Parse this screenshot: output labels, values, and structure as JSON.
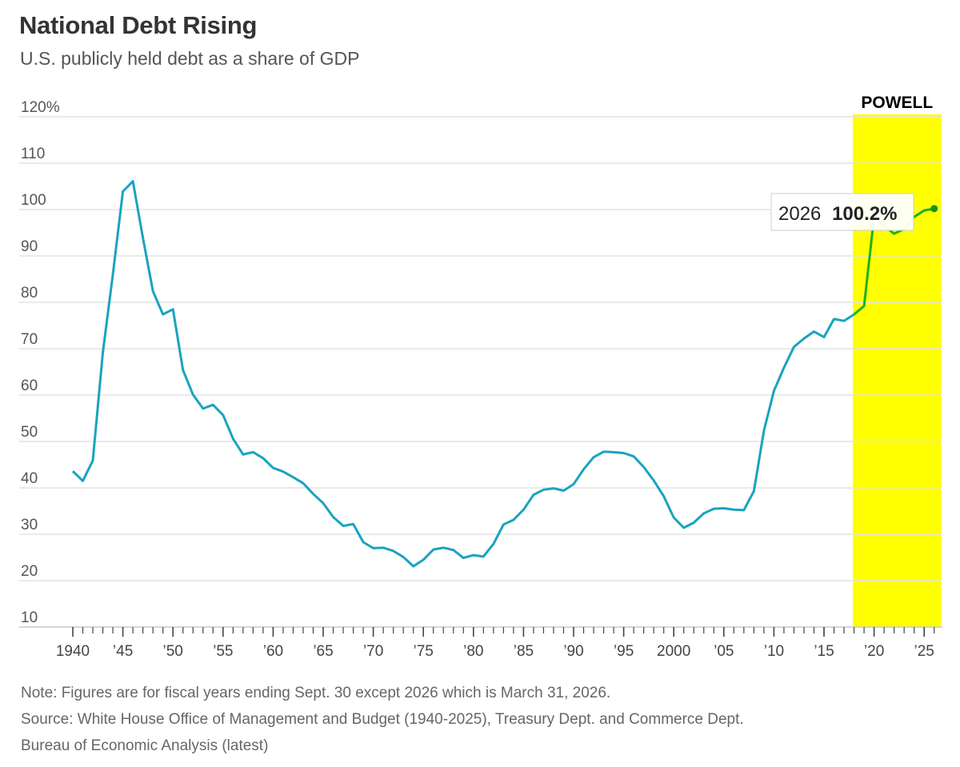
{
  "header": {
    "title": "National Debt Rising",
    "subtitle": "U.S. publicly held debt as a share of GDP"
  },
  "highlight": {
    "label": "POWELL",
    "from_year": 2018,
    "to_year": 2026.7,
    "color": "#ffff00"
  },
  "callout": {
    "year_text": "2026",
    "value_text": "100.2%"
  },
  "notes": {
    "note": "Note: Figures are for fiscal years ending Sept. 30 except 2026 which is March 31, 2026.",
    "source_line1": "Source: White House Office of Management and Budget (1940-2025), Treasury Dept. and Commerce Dept.",
    "source_line2": "Bureau of Economic Analysis (latest)"
  },
  "colors": {
    "line": "#1aa3bf",
    "line_highlight": "#1db21d",
    "grid": "#e3e3e3",
    "text": "#333333"
  },
  "chart_data": {
    "type": "line",
    "title": "National Debt Rising",
    "subtitle": "U.S. publicly held debt as a share of GDP",
    "xlabel": "",
    "ylabel": "",
    "xlim": [
      1939.9,
      2026.5
    ],
    "ylim": [
      10,
      120
    ],
    "yticks": [
      {
        "value": 120,
        "label": "120%"
      },
      {
        "value": 110,
        "label": "110"
      },
      {
        "value": 100,
        "label": "100"
      },
      {
        "value": 90,
        "label": "90"
      },
      {
        "value": 80,
        "label": "80"
      },
      {
        "value": 70,
        "label": "70"
      },
      {
        "value": 60,
        "label": "60"
      },
      {
        "value": 50,
        "label": "50"
      },
      {
        "value": 40,
        "label": "40"
      },
      {
        "value": 30,
        "label": "30"
      },
      {
        "value": 20,
        "label": "20"
      },
      {
        "value": 10,
        "label": "10"
      }
    ],
    "xticks": [
      {
        "value": 1940,
        "label": "1940"
      },
      {
        "value": 1945,
        "label": "'45"
      },
      {
        "value": 1950,
        "label": "'50"
      },
      {
        "value": 1955,
        "label": "'55"
      },
      {
        "value": 1960,
        "label": "'60"
      },
      {
        "value": 1965,
        "label": "'65"
      },
      {
        "value": 1970,
        "label": "'70"
      },
      {
        "value": 1975,
        "label": "'75"
      },
      {
        "value": 1980,
        "label": "'80"
      },
      {
        "value": 1985,
        "label": "'85"
      },
      {
        "value": 1990,
        "label": "'90"
      },
      {
        "value": 1995,
        "label": "'95"
      },
      {
        "value": 2000,
        "label": "2000"
      },
      {
        "value": 2005,
        "label": "'05"
      },
      {
        "value": 2010,
        "label": "'10"
      },
      {
        "value": 2015,
        "label": "'15"
      },
      {
        "value": 2020,
        "label": "'20"
      },
      {
        "value": 2025,
        "label": "'25"
      }
    ],
    "grid": true,
    "legend": "none",
    "series": [
      {
        "x": [
          1940,
          1941,
          1942,
          1943,
          1944,
          1945,
          1946,
          1947,
          1948,
          1949,
          1950,
          1951,
          1952,
          1953,
          1954,
          1955,
          1956,
          1957,
          1958,
          1959,
          1960,
          1961,
          1962,
          1963,
          1964,
          1965,
          1966,
          1967,
          1968,
          1969,
          1970,
          1971,
          1972,
          1973,
          1974,
          1975,
          1976,
          1977,
          1978,
          1979,
          1980,
          1981,
          1982,
          1983,
          1984,
          1985,
          1986,
          1987,
          1988,
          1989,
          1990,
          1991,
          1992,
          1993,
          1994,
          1995,
          1996,
          1997,
          1998,
          1999,
          2000,
          2001,
          2002,
          2003,
          2004,
          2005,
          2006,
          2007,
          2008,
          2009,
          2010,
          2011,
          2012,
          2013,
          2014,
          2015,
          2016,
          2017,
          2018,
          2019,
          2020,
          2021,
          2022,
          2023,
          2024,
          2025,
          2026
        ],
        "values": [
          43.6,
          41.5,
          45.9,
          69.2,
          86.0,
          103.9,
          106.1,
          93.9,
          82.4,
          77.4,
          78.5,
          65.4,
          60.1,
          57.1,
          57.9,
          55.7,
          50.6,
          47.2,
          47.7,
          46.4,
          44.3,
          43.5,
          42.3,
          41.0,
          38.7,
          36.7,
          33.7,
          31.8,
          32.2,
          28.3,
          27.0,
          27.1,
          26.4,
          25.1,
          23.1,
          24.5,
          26.7,
          27.1,
          26.6,
          24.9,
          25.5,
          25.2,
          27.9,
          32.1,
          33.1,
          35.3,
          38.5,
          39.6,
          39.9,
          39.4,
          40.8,
          44.0,
          46.6,
          47.8,
          47.7,
          47.5,
          46.8,
          44.5,
          41.6,
          38.2,
          33.6,
          31.4,
          32.5,
          34.5,
          35.5,
          35.6,
          35.3,
          35.2,
          39.3,
          52.3,
          60.9,
          65.9,
          70.4,
          72.2,
          73.7,
          72.5,
          76.4,
          76.0,
          77.4,
          79.2,
          98.4,
          96.5,
          94.8,
          95.8,
          98.4,
          99.8,
          100.2
        ]
      }
    ],
    "annotations": [
      {
        "text": "POWELL",
        "x_range": [
          2018,
          2026
        ]
      },
      {
        "text": "2026 100.2%",
        "x": 2026,
        "y": 100.2
      }
    ]
  }
}
